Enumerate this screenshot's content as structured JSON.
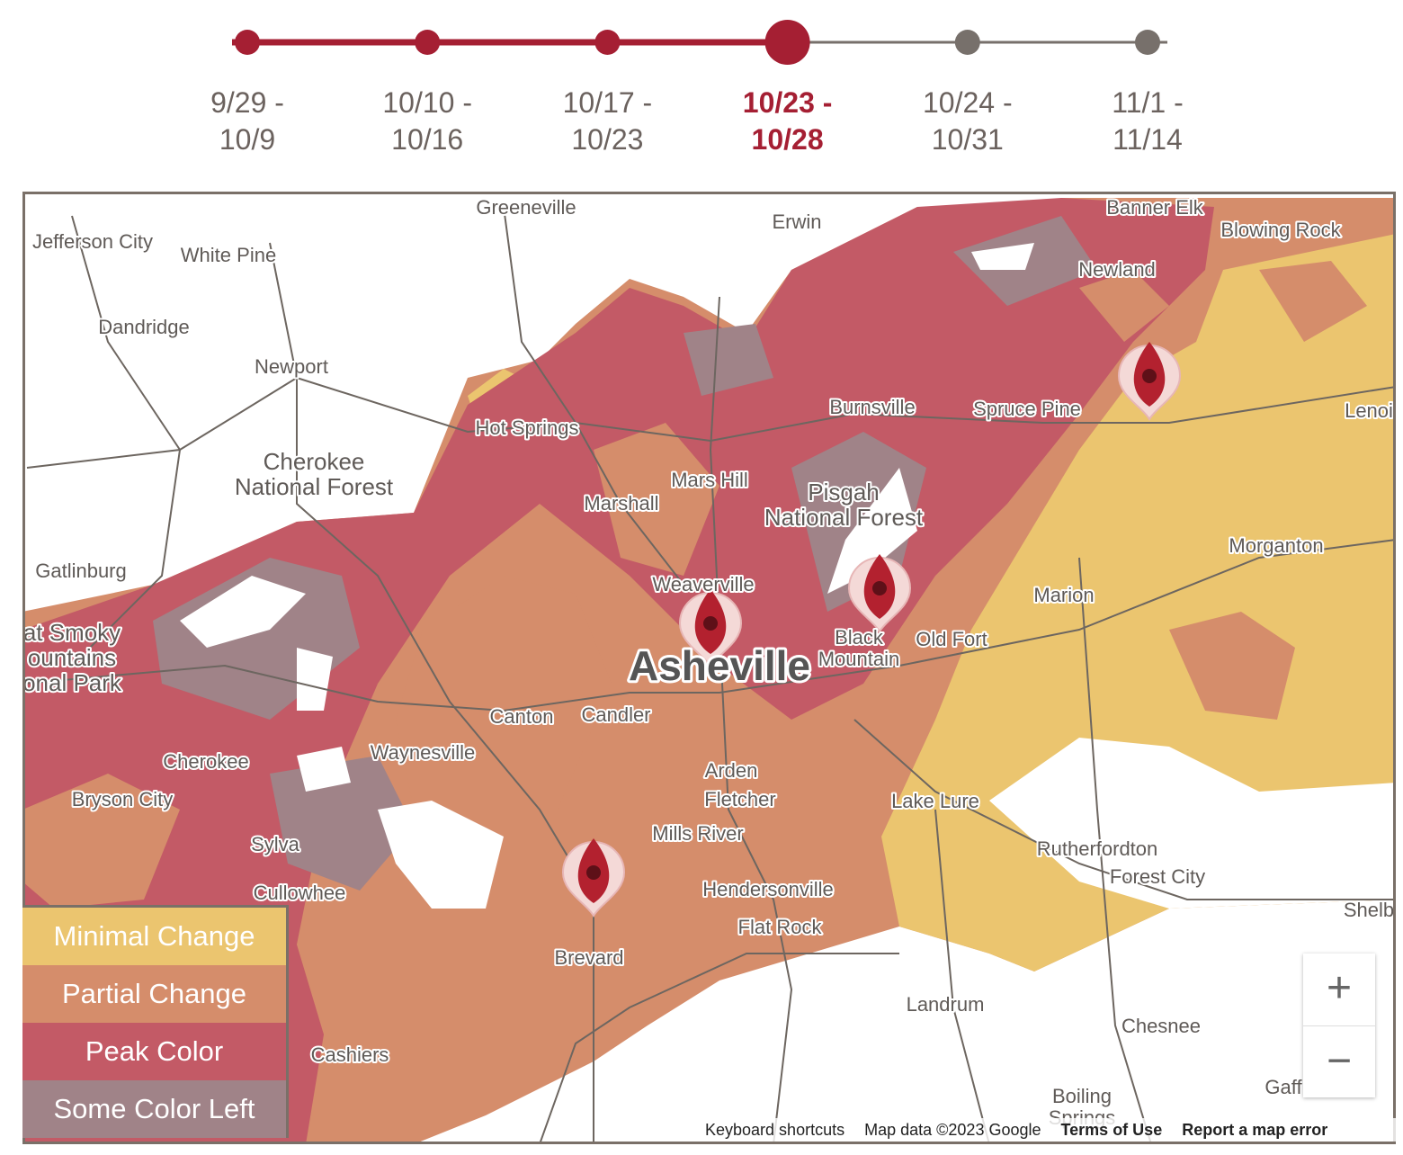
{
  "timeline": {
    "periods": [
      [
        "9/29 -",
        "10/9"
      ],
      [
        "10/10 -",
        "10/16"
      ],
      [
        "10/17 -",
        "10/23"
      ],
      [
        "10/23 -",
        "10/28"
      ],
      [
        "10/24 -",
        "10/31"
      ],
      [
        "11/1 -",
        "11/14"
      ]
    ],
    "selected": 3
  },
  "map": {
    "places": [
      [
        "Greeneville"
      ],
      [
        "Erwin"
      ],
      [
        "Banner Elk"
      ],
      [
        "Blowing Rock"
      ],
      [
        "Jefferson City"
      ],
      [
        "White Pine"
      ],
      [
        "Newland"
      ],
      [
        "Dandridge"
      ],
      [
        "Newport"
      ],
      [
        "Burnsville"
      ],
      [
        "Spruce Pine"
      ],
      [
        "Lenoi"
      ],
      [
        "Hot Springs"
      ],
      [
        "Cherokee",
        "National Forest"
      ],
      [
        "Mars Hill"
      ],
      [
        "Pisgah",
        "National Forest"
      ],
      [
        "Marshall"
      ],
      [
        "Morganton"
      ],
      [
        "Gatlinburg"
      ],
      [
        "Weaverville"
      ],
      [
        "Marion"
      ],
      [
        "Black",
        "Mountain"
      ],
      [
        "Old Fort"
      ],
      [
        "Asheville"
      ],
      [
        "Canton"
      ],
      [
        "Candler"
      ],
      [
        "Waynesville"
      ],
      [
        "Cherokee"
      ],
      [
        "Arden"
      ],
      [
        "Fletcher"
      ],
      [
        "Bryson City"
      ],
      [
        "Lake Lure"
      ],
      [
        "Mills River"
      ],
      [
        "Sylva"
      ],
      [
        "Rutherfordton"
      ],
      [
        "Forest City"
      ],
      [
        "Cullowhee"
      ],
      [
        "Hendersonville"
      ],
      [
        "Flat Rock"
      ],
      [
        "Shelb"
      ],
      [
        "Brevard"
      ],
      [
        "Landrum"
      ],
      [
        "Chesnee"
      ],
      [
        "Cashiers"
      ],
      [
        "Boiling",
        "Springs"
      ],
      [
        "Gaff"
      ],
      [
        "at Smoky",
        "ountains",
        "onal Park"
      ]
    ]
  },
  "legend": {
    "items": [
      {
        "label": "Minimal Change",
        "color": "#ebc56f"
      },
      {
        "label": "Partial Change",
        "color": "#d58d6b"
      },
      {
        "label": "Peak Color",
        "color": "#c35a66"
      },
      {
        "label": "Some Color Left",
        "color": "#a08388"
      }
    ]
  },
  "zoom": {
    "in": "+",
    "out": "−"
  },
  "footer": {
    "shortcuts": "Keyboard shortcuts",
    "data": "Map data ©2023 Google",
    "terms": "Terms of Use",
    "report": "Report a map error"
  }
}
